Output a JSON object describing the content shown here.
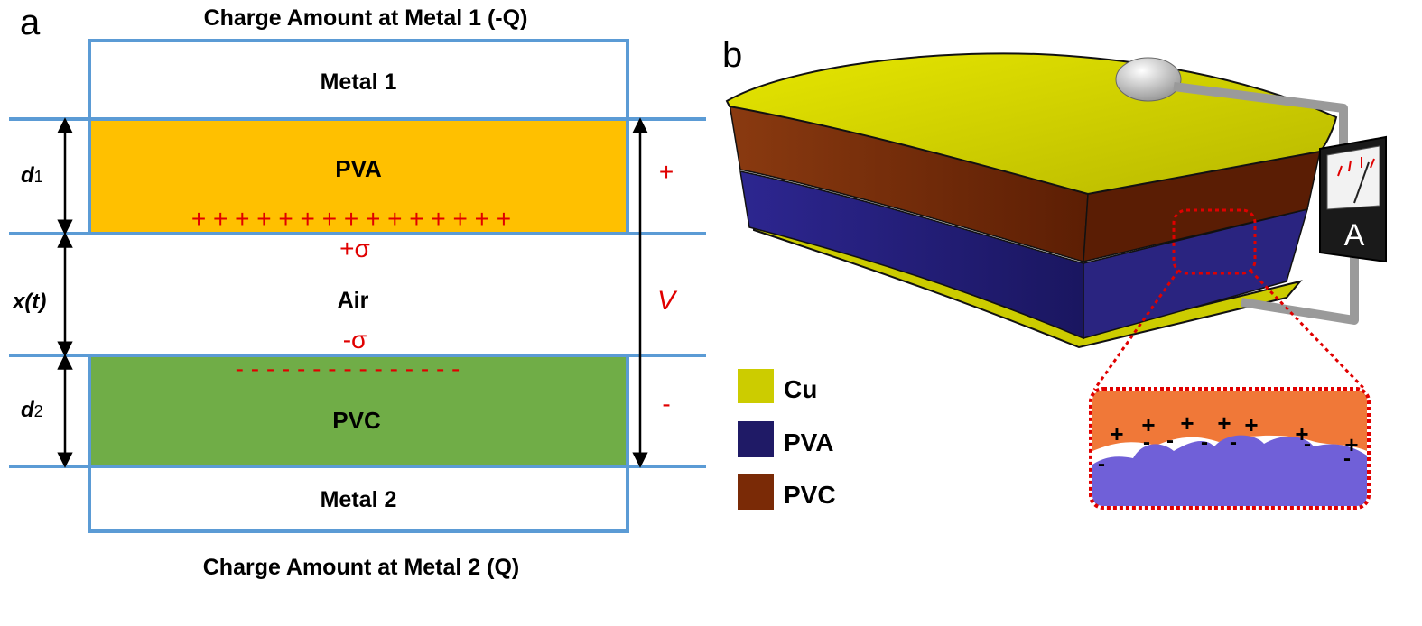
{
  "panel_a": {
    "letter": "a",
    "top_caption": "Charge Amount at Metal 1 (-Q)",
    "bottom_caption": "Charge Amount at Metal 2 (Q)",
    "metal1": "Metal 1",
    "metal2": "Metal 2",
    "pva": "PVA",
    "pvc": "PVC",
    "air": "Air",
    "plus_sigma": "+σ",
    "minus_sigma": "-σ",
    "d1_main": "d",
    "d1_sub": "1",
    "d2_main": "d",
    "d2_sub": "2",
    "x_label": "x(t)",
    "v_label": "V",
    "v_plus": "+",
    "v_minus": "-",
    "plus_row": "+ + + + + + + + + + + + + + +",
    "minus_row": "- - - - - - - - - - - - - - -",
    "colors": {
      "border": "#5b9bd5",
      "pva": "#ffc000",
      "pvc": "#70ad47",
      "charge": "#e00000"
    }
  },
  "panel_b": {
    "letter": "b",
    "meter_label": "A",
    "legend": [
      {
        "label": "Cu",
        "color": "#cccc00"
      },
      {
        "label": "PVA",
        "color": "#1f1a66"
      },
      {
        "label": "PVC",
        "color": "#7a2a06"
      }
    ],
    "inset_plus": [
      "+",
      "+",
      "+",
      "+",
      "+",
      "+",
      "+"
    ],
    "inset_minus": [
      "-",
      "-",
      "-",
      "-",
      "-",
      "-",
      "-"
    ]
  }
}
